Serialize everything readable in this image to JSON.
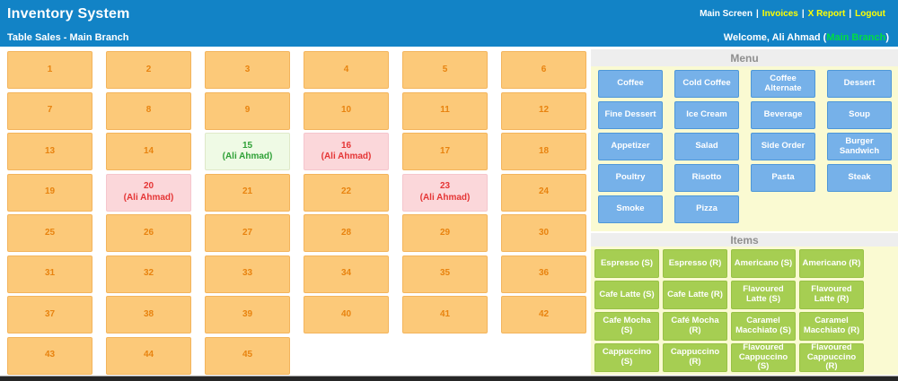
{
  "header": {
    "title": "Inventory System",
    "nav": [
      {
        "label": "Main Screen",
        "cls": "nav-active",
        "sep": "|"
      },
      {
        "label": "Invoices",
        "cls": "",
        "sep": "|"
      },
      {
        "label": "X Report",
        "cls": "",
        "sep": "|"
      },
      {
        "label": "Logout",
        "cls": "",
        "sep": ""
      }
    ],
    "subtitle": "Table Sales - Main Branch",
    "welcome": {
      "prefix": "Welcome, Ali Ahmad (",
      "branch": "Main Branch",
      "suffix": ")"
    }
  },
  "tables": {
    "cells": [
      {
        "n": "1",
        "status": "free",
        "sub": ""
      },
      {
        "n": "2",
        "status": "free",
        "sub": ""
      },
      {
        "n": "3",
        "status": "free",
        "sub": ""
      },
      {
        "n": "4",
        "status": "free",
        "sub": ""
      },
      {
        "n": "5",
        "status": "free",
        "sub": ""
      },
      {
        "n": "6",
        "status": "free",
        "sub": ""
      },
      {
        "n": "7",
        "status": "free",
        "sub": ""
      },
      {
        "n": "8",
        "status": "free",
        "sub": ""
      },
      {
        "n": "9",
        "status": "free",
        "sub": ""
      },
      {
        "n": "10",
        "status": "free",
        "sub": ""
      },
      {
        "n": "11",
        "status": "free",
        "sub": ""
      },
      {
        "n": "12",
        "status": "free",
        "sub": ""
      },
      {
        "n": "13",
        "status": "free",
        "sub": ""
      },
      {
        "n": "14",
        "status": "free",
        "sub": ""
      },
      {
        "n": "15",
        "status": "active",
        "sub": "(Ali Ahmad)"
      },
      {
        "n": "16",
        "status": "occupied",
        "sub": "(Ali Ahmad)"
      },
      {
        "n": "17",
        "status": "free",
        "sub": ""
      },
      {
        "n": "18",
        "status": "free",
        "sub": ""
      },
      {
        "n": "19",
        "status": "free",
        "sub": ""
      },
      {
        "n": "20",
        "status": "occupied",
        "sub": "(Ali Ahmad)"
      },
      {
        "n": "21",
        "status": "free",
        "sub": ""
      },
      {
        "n": "22",
        "status": "free",
        "sub": ""
      },
      {
        "n": "23",
        "status": "occupied",
        "sub": "(Ali Ahmad)"
      },
      {
        "n": "24",
        "status": "free",
        "sub": ""
      },
      {
        "n": "25",
        "status": "free",
        "sub": ""
      },
      {
        "n": "26",
        "status": "free",
        "sub": ""
      },
      {
        "n": "27",
        "status": "free",
        "sub": ""
      },
      {
        "n": "28",
        "status": "free",
        "sub": ""
      },
      {
        "n": "29",
        "status": "free",
        "sub": ""
      },
      {
        "n": "30",
        "status": "free",
        "sub": ""
      },
      {
        "n": "31",
        "status": "free",
        "sub": ""
      },
      {
        "n": "32",
        "status": "free",
        "sub": ""
      },
      {
        "n": "33",
        "status": "free",
        "sub": ""
      },
      {
        "n": "34",
        "status": "free",
        "sub": ""
      },
      {
        "n": "35",
        "status": "free",
        "sub": ""
      },
      {
        "n": "36",
        "status": "free",
        "sub": ""
      },
      {
        "n": "37",
        "status": "free",
        "sub": ""
      },
      {
        "n": "38",
        "status": "free",
        "sub": ""
      },
      {
        "n": "39",
        "status": "free",
        "sub": ""
      },
      {
        "n": "40",
        "status": "free",
        "sub": ""
      },
      {
        "n": "41",
        "status": "free",
        "sub": ""
      },
      {
        "n": "42",
        "status": "free",
        "sub": ""
      },
      {
        "n": "43",
        "status": "free",
        "sub": ""
      },
      {
        "n": "44",
        "status": "free",
        "sub": ""
      },
      {
        "n": "45",
        "status": "free",
        "sub": ""
      }
    ]
  },
  "menu": {
    "title": "Menu",
    "buttons": [
      "Coffee",
      "Cold Coffee",
      "Coffee Alternate",
      "Dessert",
      "Fine Dessert",
      "Ice Cream",
      "Beverage",
      "Soup",
      "Appetizer",
      "Salad",
      "Side Order",
      "Burger Sandwich",
      "Poultry",
      "Risotto",
      "Pasta",
      "Steak",
      "Smoke",
      "Pizza"
    ]
  },
  "items": {
    "title": "Items",
    "buttons": [
      "Espresso (S)",
      "Espresso (R)",
      "Americano (S)",
      "Americano (R)",
      "Cafe Latte (S)",
      "Cafe Latte (R)",
      "Flavoured Latte (S)",
      "Flavoured Latte (R)",
      "Cafe Mocha (S)",
      "Café Mocha (R)",
      "Caramel Macchiato (S)",
      "Caramel Macchiato (R)",
      "Cappuccino (S)",
      "Cappuccino (R)",
      "Flavoured Cappuccino (S)",
      "Flavoured Cappuccino (R)"
    ]
  },
  "colors": {
    "header_bg": "#1283C6",
    "nav_link": "#FFFF00",
    "branch_green": "#00DD44",
    "table_free_bg": "#FCC979",
    "table_active_bg": "#EFFAE5",
    "table_occupied_bg": "#FBD7DA",
    "panel_bg": "#FAFAD2",
    "menu_button_bg": "#76B1E9",
    "item_button_bg": "#A6CE52"
  }
}
